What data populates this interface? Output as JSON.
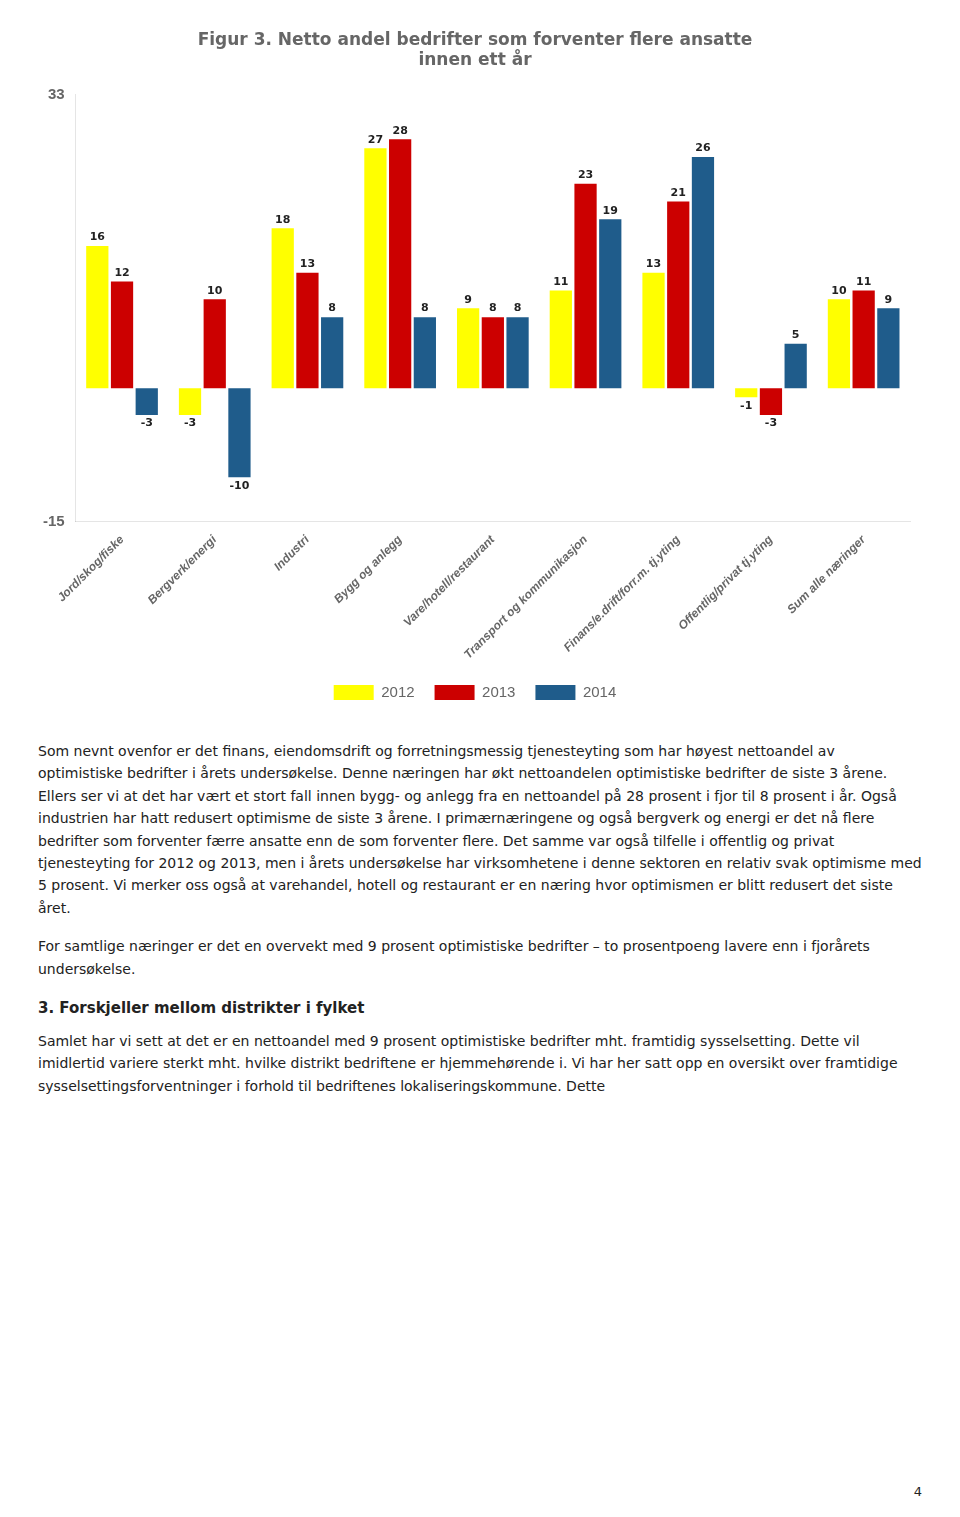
{
  "chart_data": {
    "type": "bar",
    "title": [
      "Figur 3. Netto andel bedrifter som forventer flere ansatte",
      "innen ett år"
    ],
    "categories": [
      "Jord/skog/fiske",
      "Bergverk/energi",
      "Industri",
      "Bygg og anlegg",
      "Vare/hotell/restaurant",
      "Transport og kommunikasjon",
      "Finans/e.drift/forr.m. tj.yting",
      "Offentlig/privat tj.yting",
      "Sum alle næringer"
    ],
    "series": [
      {
        "name": "2012",
        "color": "#FFFF00",
        "values": [
          16,
          -3,
          18,
          27,
          9,
          11,
          13,
          -1,
          10
        ]
      },
      {
        "name": "2013",
        "color": "#CC0000",
        "values": [
          12,
          10,
          13,
          28,
          8,
          23,
          21,
          -3,
          11
        ]
      },
      {
        "name": "2014",
        "color": "#1F5C8B",
        "values": [
          -3,
          -10,
          8,
          8,
          8,
          19,
          26,
          5,
          9
        ]
      }
    ],
    "ylim": [
      -15,
      33
    ],
    "yticks": [
      -15,
      33
    ],
    "grid": false,
    "legend": "bottom",
    "data_labels": true
  },
  "body": [
    {
      "paragraph": "Som nevnt ovenfor er det finans, eiendomsdrift og forretningsmessig tjenesteyting som har høyest nettoandel av optimistiske bedrifter i årets undersøkelse. Denne næringen har økt nettoandelen optimistiske bedrifter de siste 3 årene. Ellers ser vi at det har vært et stort fall innen bygg- og anlegg fra en nettoandel på 28 prosent i fjor til 8 prosent i år. Også industrien har hatt redusert optimisme de siste 3 årene. I primærnæringene og også bergverk og energi er det nå flere bedrifter som forventer færre ansatte enn de som forventer flere. Det samme var også tilfelle i offentlig og privat tjenesteyting for 2012 og 2013, men i årets undersøkelse har virksomhetene i denne sektoren en relativ svak optimisme med 5 prosent. Vi merker oss også at varehandel, hotell og restaurant er en næring hvor optimismen er blitt redusert det siste året."
    },
    {
      "paragraph": "For samtlige næringer er det en overvekt med 9 prosent optimistiske bedrifter – to prosentpoeng lavere enn i fjorårets undersøkelse."
    },
    {
      "heading": "3. Forskjeller mellom distrikter i fylket"
    },
    {
      "paragraph": "Samlet har vi sett at det er en nettoandel med 9 prosent optimistiske bedrifter mht. framtidig sysselsetting. Dette vil imidlertid variere sterkt mht. hvilke distrikt bedriftene er hjemmehørende i. Vi har her satt opp en oversikt over framtidige sysselsettingsforventninger i forhold til bedriftenes lokaliseringskommune. Dette"
    }
  ],
  "page_number": "4"
}
